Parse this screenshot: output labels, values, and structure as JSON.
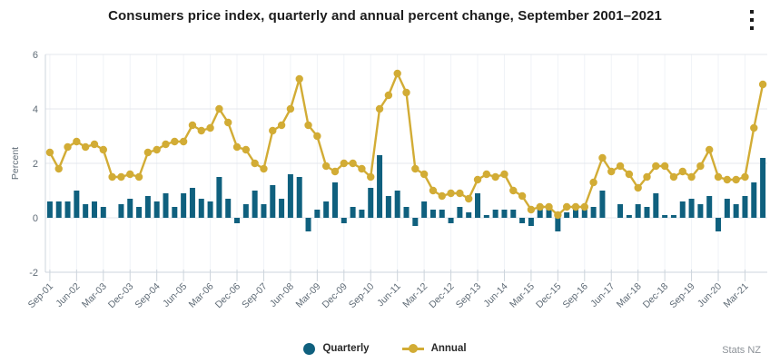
{
  "header": {
    "title": "Consumers price index, quarterly and annual percent change, September 2001–2021",
    "menu_icon": "kebab-menu"
  },
  "footer": {
    "source": "Stats NZ"
  },
  "colors": {
    "quarterly_bar": "#0f607e",
    "annual_line": "#d2ac35",
    "title_text": "#1c1c1c",
    "axis_text": "#5f6b76",
    "h_gridline": "#e4e7ed",
    "v_gridline": "#f0f3f7",
    "axis_line": "#ccd4dc"
  },
  "chart_data": {
    "type": "combo-bar-line",
    "title": "Consumers price index, quarterly and annual percent change, September 2001–2021",
    "xlabel": "",
    "ylabel": "Percent",
    "ylim": [
      -2,
      6
    ],
    "yticks": [
      -2,
      0,
      2,
      4,
      6
    ],
    "grid": true,
    "legend_position": "bottom-center",
    "x_tick_every": 3,
    "x_tick_labels": [
      "Sep-01",
      "Jun-02",
      "Mar-03",
      "Dec-03",
      "Sep-04",
      "Jun-05",
      "Mar-06",
      "Dec-06",
      "Sep-07",
      "Jun-08",
      "Mar-09",
      "Dec-09",
      "Sep-10",
      "Jun-11",
      "Mar-12",
      "Dec-12",
      "Sep-13",
      "Jun-14",
      "Mar-15",
      "Dec-15",
      "Sep-16",
      "Jun-17",
      "Mar-18",
      "Dec-18",
      "Sep-19",
      "Jun-20",
      "Mar-21"
    ],
    "categories": [
      "Sep-01",
      "Dec-01",
      "Mar-02",
      "Jun-02",
      "Sep-02",
      "Dec-02",
      "Mar-03",
      "Jun-03",
      "Sep-03",
      "Dec-03",
      "Mar-04",
      "Jun-04",
      "Sep-04",
      "Dec-04",
      "Mar-05",
      "Jun-05",
      "Sep-05",
      "Dec-05",
      "Mar-06",
      "Jun-06",
      "Sep-06",
      "Dec-06",
      "Mar-07",
      "Jun-07",
      "Sep-07",
      "Dec-07",
      "Mar-08",
      "Jun-08",
      "Sep-08",
      "Dec-08",
      "Mar-09",
      "Jun-09",
      "Sep-09",
      "Dec-09",
      "Mar-10",
      "Jun-10",
      "Sep-10",
      "Dec-10",
      "Mar-11",
      "Jun-11",
      "Sep-11",
      "Dec-11",
      "Mar-12",
      "Jun-12",
      "Sep-12",
      "Dec-12",
      "Mar-13",
      "Jun-13",
      "Sep-13",
      "Dec-13",
      "Mar-14",
      "Jun-14",
      "Sep-14",
      "Dec-14",
      "Mar-15",
      "Jun-15",
      "Sep-15",
      "Dec-15",
      "Mar-16",
      "Jun-16",
      "Sep-16",
      "Dec-16",
      "Mar-17",
      "Jun-17",
      "Sep-17",
      "Dec-17",
      "Mar-18",
      "Jun-18",
      "Sep-18",
      "Dec-18",
      "Mar-19",
      "Jun-19",
      "Sep-19",
      "Dec-19",
      "Mar-20",
      "Jun-20",
      "Sep-20",
      "Dec-20",
      "Mar-21",
      "Jun-21",
      "Sep-21"
    ],
    "series": [
      {
        "name": "Quarterly",
        "type": "bar",
        "color": "#0f607e",
        "values": [
          0.6,
          0.6,
          0.6,
          1.0,
          0.5,
          0.6,
          0.4,
          0.0,
          0.5,
          0.7,
          0.4,
          0.8,
          0.6,
          0.9,
          0.4,
          0.9,
          1.1,
          0.7,
          0.6,
          1.5,
          0.7,
          -0.2,
          0.5,
          1.0,
          0.5,
          1.2,
          0.7,
          1.6,
          1.5,
          -0.5,
          0.3,
          0.6,
          1.3,
          -0.2,
          0.4,
          0.3,
          1.1,
          2.3,
          0.8,
          1.0,
          0.4,
          -0.3,
          0.6,
          0.3,
          0.3,
          -0.2,
          0.4,
          0.2,
          0.9,
          0.1,
          0.3,
          0.3,
          0.3,
          -0.2,
          -0.3,
          0.4,
          0.3,
          -0.5,
          0.2,
          0.4,
          0.3,
          0.4,
          1.0,
          0.0,
          0.5,
          0.1,
          0.5,
          0.4,
          0.9,
          0.1,
          0.1,
          0.6,
          0.7,
          0.5,
          0.8,
          -0.5,
          0.7,
          0.5,
          0.8,
          1.3,
          2.2
        ]
      },
      {
        "name": "Annual",
        "type": "line",
        "color": "#d2ac35",
        "values": [
          2.4,
          1.8,
          2.6,
          2.8,
          2.6,
          2.7,
          2.5,
          1.5,
          1.5,
          1.6,
          1.5,
          2.4,
          2.5,
          2.7,
          2.8,
          2.8,
          3.4,
          3.2,
          3.3,
          4.0,
          3.5,
          2.6,
          2.5,
          2.0,
          1.8,
          3.2,
          3.4,
          4.0,
          5.1,
          3.4,
          3.0,
          1.9,
          1.7,
          2.0,
          2.0,
          1.8,
          1.5,
          4.0,
          4.5,
          5.3,
          4.6,
          1.8,
          1.6,
          1.0,
          0.8,
          0.9,
          0.9,
          0.7,
          1.4,
          1.6,
          1.5,
          1.6,
          1.0,
          0.8,
          0.3,
          0.4,
          0.4,
          0.1,
          0.4,
          0.4,
          0.4,
          1.3,
          2.2,
          1.7,
          1.9,
          1.6,
          1.1,
          1.5,
          1.9,
          1.9,
          1.5,
          1.7,
          1.5,
          1.9,
          2.5,
          1.5,
          1.4,
          1.4,
          1.5,
          3.3,
          4.9
        ]
      }
    ]
  }
}
